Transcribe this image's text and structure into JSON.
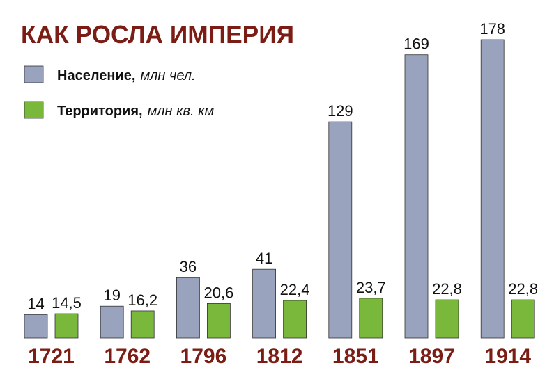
{
  "chart_data": {
    "type": "bar",
    "title": "КАК РОСЛА ИМПЕРИЯ",
    "categories": [
      "1721",
      "1762",
      "1796",
      "1812",
      "1851",
      "1897",
      "1914"
    ],
    "series": [
      {
        "name": "Население,",
        "unit": "млн чел.",
        "color": "#99a3bd",
        "values": [
          14,
          19,
          36,
          41,
          129,
          169,
          178
        ]
      },
      {
        "name": "Территория,",
        "unit": "млн кв. км",
        "color": "#7ab83c",
        "values": [
          14.5,
          16.2,
          20.6,
          22.4,
          23.7,
          22.8,
          22.8
        ],
        "value_labels": [
          "14,5",
          "16,2",
          "20,6",
          "22,4",
          "23,7",
          "22,8",
          "22,8"
        ]
      }
    ]
  }
}
